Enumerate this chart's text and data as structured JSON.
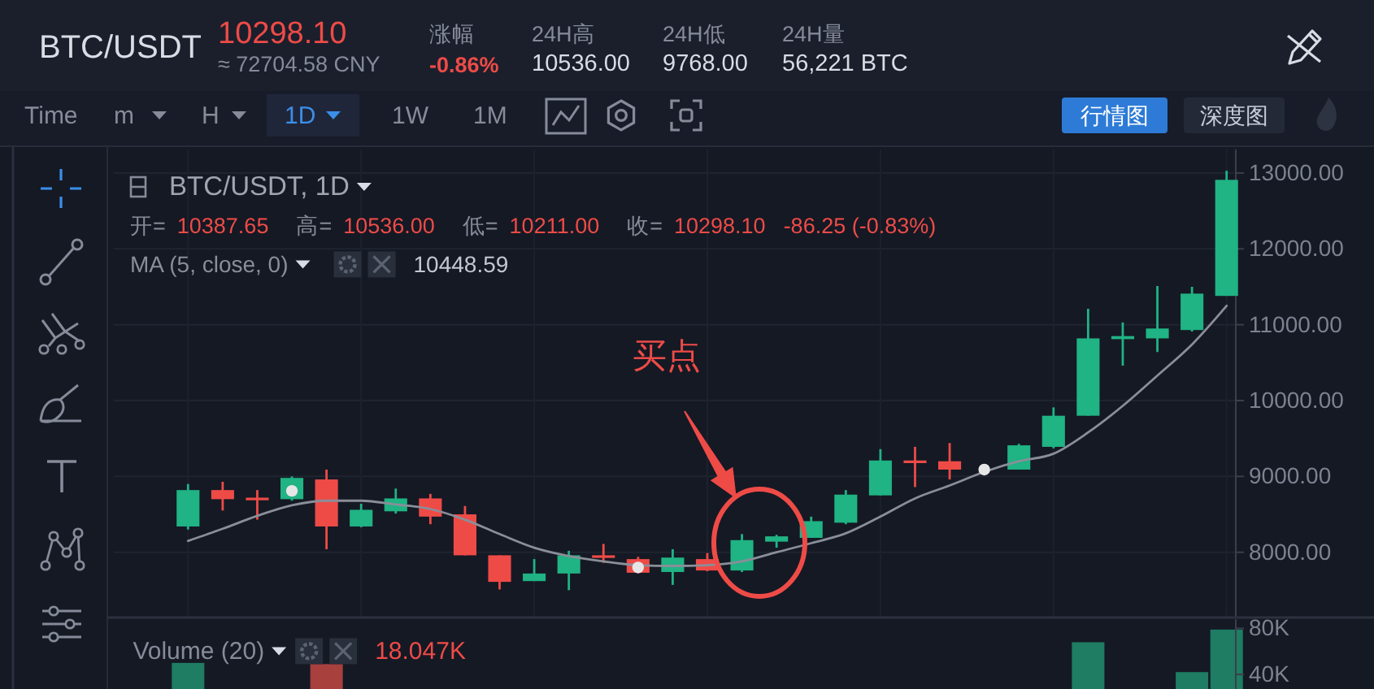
{
  "chart_data": [
    {
      "type": "candlestick",
      "title": "BTC/USDT",
      "subtitle": "BTC/USDT, 1D",
      "categories": [
        null,
        null,
        null,
        null,
        null,
        null,
        null,
        null,
        null,
        null,
        null,
        null,
        null,
        null,
        null,
        null,
        null,
        null,
        null,
        null,
        null,
        null,
        null,
        null,
        null,
        null,
        null,
        null,
        null,
        null,
        null
      ],
      "ohlc": [
        [
          8340,
          8900,
          8300,
          8820
        ],
        [
          8820,
          8930,
          8550,
          8700
        ],
        [
          8720,
          8820,
          8430,
          8700
        ],
        [
          8700,
          9000,
          8680,
          8980
        ],
        [
          8960,
          9090,
          8040,
          8340
        ],
        [
          8340,
          8640,
          8330,
          8560
        ],
        [
          8540,
          8840,
          8510,
          8710
        ],
        [
          8710,
          8770,
          8370,
          8470
        ],
        [
          8500,
          8610,
          7960,
          7960
        ],
        [
          7960,
          7960,
          7510,
          7610
        ],
        [
          7620,
          7910,
          7620,
          7720
        ],
        [
          7720,
          8020,
          7500,
          7960
        ],
        [
          7960,
          8110,
          7860,
          7930
        ],
        [
          7910,
          7940,
          7720,
          7730
        ],
        [
          7740,
          8040,
          7570,
          7930
        ],
        [
          7910,
          7990,
          7750,
          7760
        ],
        [
          7760,
          8240,
          7740,
          8160
        ],
        [
          8140,
          8230,
          8060,
          8210
        ],
        [
          8190,
          8470,
          8190,
          8410
        ],
        [
          8390,
          8820,
          8370,
          8760
        ],
        [
          8750,
          9360,
          8750,
          9210
        ],
        [
          9210,
          9390,
          8860,
          9180
        ],
        [
          9200,
          9440,
          8960,
          9090
        ],
        null,
        [
          9090,
          9430,
          9090,
          9410
        ],
        [
          9390,
          9910,
          9370,
          9800
        ],
        [
          9800,
          11210,
          9800,
          10820
        ],
        [
          10810,
          11030,
          10460,
          10850
        ],
        [
          10820,
          11510,
          10640,
          10950
        ],
        [
          10930,
          11500,
          10910,
          11410
        ],
        [
          11380,
          13030,
          11380,
          12910
        ]
      ],
      "colors": [
        "#20b384",
        "#ee4b47",
        "#ee4b47",
        "#20b384",
        "#ee4b47",
        "#20b384",
        "#20b384",
        "#ee4b47",
        "#ee4b47",
        "#ee4b47",
        "#20b384",
        "#20b384",
        "#ee4b47",
        "#ee4b47",
        "#20b384",
        "#ee4b47",
        "#20b384",
        "#20b384",
        "#20b384",
        "#20b384",
        "#20b384",
        "#ee4b47",
        "#ee4b47",
        null,
        "#20b384",
        "#20b384",
        "#20b384",
        "#20b384",
        "#20b384",
        "#20b384",
        "#20b384"
      ],
      "series": [
        {
          "type": "line",
          "name": "MA (5, close, 0)",
          "color": "#8a8e99",
          "values": [
            8150,
            8310,
            8480,
            8620,
            8680,
            8680,
            8630,
            8570,
            8430,
            8240,
            8060,
            7950,
            7880,
            7830,
            7820,
            7830,
            7880,
            8000,
            8120,
            8250,
            8470,
            8710,
            8880,
            9060,
            9200,
            9300,
            9580,
            9930,
            10330,
            10740,
            11250
          ]
        },
        {
          "type": "scatter",
          "color": "#e6e6e6",
          "values": [
            null,
            null,
            null,
            8810,
            null,
            null,
            null,
            null,
            null,
            null,
            null,
            null,
            null,
            7800,
            null,
            null,
            null,
            null,
            null,
            null,
            null,
            null,
            null,
            9090,
            null,
            null,
            null,
            null,
            null,
            null,
            null
          ]
        }
      ],
      "ylim": [
        7140,
        13310
      ],
      "yticks": [
        {
          "value": 8000,
          "label": "8000.00"
        },
        {
          "value": 9000,
          "label": "9000.00"
        },
        {
          "value": 10000,
          "label": "10000.00"
        },
        {
          "value": 11000,
          "label": "11000.00"
        },
        {
          "value": 12000,
          "label": "12000.00"
        },
        {
          "value": 13000,
          "label": "13000.00"
        }
      ],
      "tick_labels": "y",
      "grid": true,
      "legend": "top left",
      "annotations": [
        "10298.10",
        "≈ 72704.58 CNY",
        "涨幅",
        "-0.86%",
        "24H高",
        "10536.00",
        "24H低",
        "9768.00",
        "24H量",
        "56,221 BTC",
        "Time",
        "m",
        "H",
        "1D",
        "1W",
        "1M",
        "行情图",
        "深度图",
        "开=",
        "10387.65",
        "高=",
        "10536.00",
        "低=",
        "10211.00",
        "收=",
        "10298.10",
        "-86.25 (-0.83%)",
        "10448.59",
        "买点"
      ]
    },
    {
      "type": "bar",
      "title": "Volume (20)",
      "categories": [
        null,
        null,
        null,
        null,
        null,
        null,
        null,
        null,
        null,
        null,
        null,
        null,
        null,
        null,
        null,
        null,
        null,
        null,
        null,
        null,
        null,
        null,
        null,
        null,
        null,
        null,
        null,
        null,
        null,
        null,
        null
      ],
      "values": [
        50000,
        null,
        null,
        null,
        49000,
        null,
        null,
        null,
        null,
        null,
        null,
        null,
        null,
        null,
        null,
        null,
        null,
        null,
        null,
        null,
        null,
        null,
        null,
        null,
        null,
        null,
        68000,
        null,
        null,
        42000,
        79000
      ],
      "colors": [
        "#1e7d63",
        null,
        null,
        null,
        "#a8403d",
        null,
        null,
        null,
        null,
        null,
        null,
        null,
        null,
        null,
        null,
        null,
        null,
        null,
        null,
        null,
        null,
        null,
        null,
        null,
        null,
        null,
        "#1e7d63",
        null,
        null,
        "#1e7d63",
        "#1e7d63"
      ],
      "ylim": [
        27300,
        88100
      ],
      "yticks": [
        {
          "value": 40000,
          "label": "40K"
        },
        {
          "value": 80000,
          "label": "80K"
        }
      ],
      "tick_labels": "y",
      "annotations": [
        "18.047K"
      ]
    }
  ]
}
